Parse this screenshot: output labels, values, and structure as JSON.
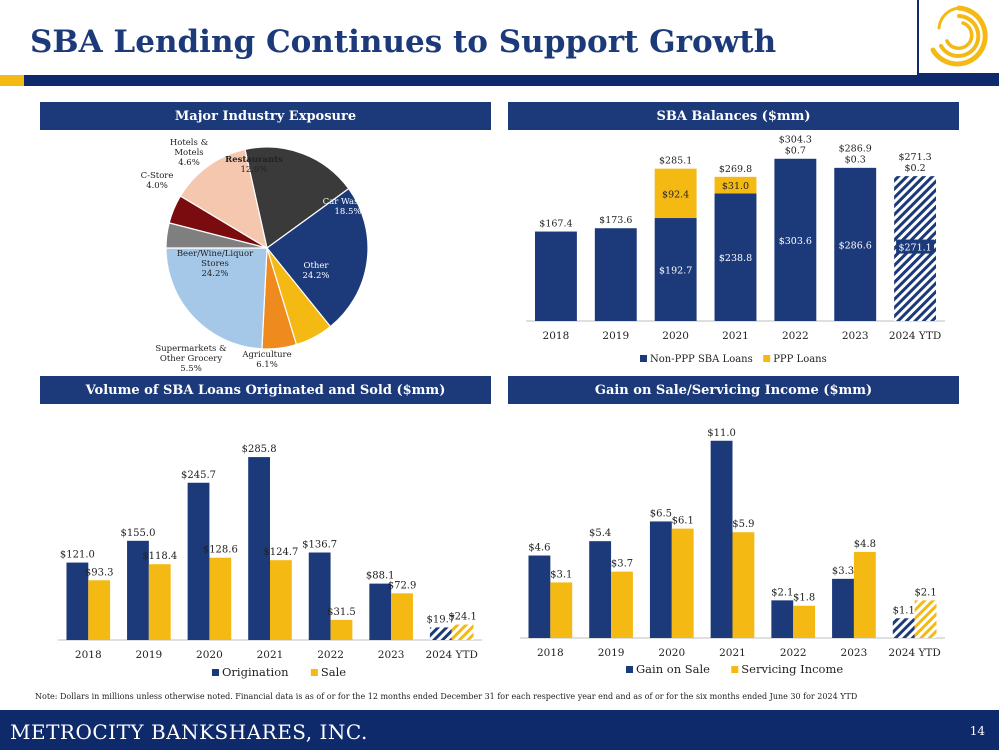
{
  "header": {
    "title": "SBA Lending Continues to Support Growth",
    "logo_icon": "swirl-logo-icon"
  },
  "colors": {
    "navy": "#1c3a7a",
    "dark_navy": "#0f2a6b",
    "gold": "#f5b914"
  },
  "footer": {
    "company": "METROCITY BANKSHARES, INC.",
    "page_number": "14",
    "note": "Note: Dollars in millions unless otherwise noted. Financial data is as of or for the 12 months ended December 31 for each respective year end and as of or for the six months ended June 30 for 2024 YTD"
  },
  "panels": {
    "industry": "Major Industry Exposure",
    "balances": "SBA Balances ($mm)",
    "volume": "Volume of SBA Loans Originated and Sold ($mm)",
    "gain": "Gain on Sale/Servicing Income ($mm)"
  },
  "chart_data": [
    {
      "type": "pie",
      "title": "Major Industry Exposure",
      "slices": [
        {
          "label": "Car Washes",
          "value": 18.5,
          "pct": "18.5%",
          "color": "#3a3a3a"
        },
        {
          "label": "Other",
          "value": 24.2,
          "pct": "24.2%",
          "color": "#1c3a7a"
        },
        {
          "label": "Agriculture",
          "value": 6.1,
          "pct": "6.1%",
          "color": "#f5b914"
        },
        {
          "label": "Supermarkets & Other Grocery",
          "value": 5.5,
          "pct": "5.5%",
          "color": "#ee8a1e"
        },
        {
          "label": "Beer/Wine/Liquor Stores",
          "value": 24.2,
          "pct": "24.2%",
          "color": "#a6c8e8"
        },
        {
          "label": "C-Store",
          "value": 4.0,
          "pct": "4.0%",
          "color": "#7f7f7f"
        },
        {
          "label": "Hotels & Motels",
          "value": 4.6,
          "pct": "4.6%",
          "color": "#7a0c10"
        },
        {
          "label": "Restaurants",
          "value": 12.9,
          "pct": "12.9%",
          "color": "#f4c7ae"
        }
      ]
    },
    {
      "type": "bar",
      "stacked": true,
      "title": "SBA Balances ($mm)",
      "categories": [
        "2018",
        "2019",
        "2020",
        "2021",
        "2022",
        "2023",
        "2024 YTD"
      ],
      "series": [
        {
          "name": "Non-PPP SBA Loans",
          "values": [
            167.4,
            173.6,
            192.7,
            238.8,
            303.6,
            286.6,
            271.1
          ],
          "labels": [
            "",
            "",
            "$192.7",
            "$238.8",
            "$303.6",
            "$286.6",
            "$271.1"
          ],
          "color": "#1c3a7a"
        },
        {
          "name": "PPP Loans",
          "values": [
            0,
            0,
            92.4,
            31.0,
            0.7,
            0.3,
            0.2
          ],
          "labels": [
            "",
            "",
            "$92.4",
            "$31.0",
            "$0.7",
            "$0.3",
            "$0.2"
          ],
          "color": "#f5b914"
        }
      ],
      "totals": [
        "$167.4",
        "$173.6",
        "$285.1",
        "$269.8",
        "$304.3",
        "$286.9",
        "$271.3"
      ],
      "hatched_last": true,
      "ylim": [
        0,
        320
      ],
      "legend": "bottom"
    },
    {
      "type": "bar",
      "title": "Volume of SBA Loans Originated and Sold ($mm)",
      "categories": [
        "2018",
        "2019",
        "2020",
        "2021",
        "2022",
        "2023",
        "2024 YTD"
      ],
      "series": [
        {
          "name": "Origination",
          "values": [
            121.0,
            155.0,
            245.7,
            285.8,
            136.7,
            88.1,
            19.7
          ],
          "labels": [
            "$121.0",
            "$155.0",
            "$245.7",
            "$285.8",
            "$136.7",
            "$88.1",
            "$19.7"
          ],
          "color": "#1c3a7a"
        },
        {
          "name": "Sale",
          "values": [
            93.3,
            118.4,
            128.6,
            124.7,
            31.5,
            72.9,
            24.1
          ],
          "labels": [
            "$93.3",
            "$118.4",
            "$128.6",
            "$124.7",
            "$31.5",
            "$72.9",
            "$24.1"
          ],
          "color": "#f5b914"
        }
      ],
      "hatched_last": true,
      "ylim": [
        0,
        300
      ],
      "legend": "bottom"
    },
    {
      "type": "bar",
      "title": "Gain on Sale/Servicing Income ($mm)",
      "categories": [
        "2018",
        "2019",
        "2020",
        "2021",
        "2022",
        "2023",
        "2024 YTD"
      ],
      "series": [
        {
          "name": "Gain on Sale",
          "values": [
            4.6,
            5.4,
            6.5,
            11.0,
            2.1,
            3.3,
            1.1
          ],
          "labels": [
            "$4.6",
            "$5.4",
            "$6.5",
            "$11.0",
            "$2.1",
            "$3.3",
            "$1.1"
          ],
          "color": "#1c3a7a"
        },
        {
          "name": "Servicing Income",
          "values": [
            3.1,
            3.7,
            6.1,
            5.9,
            1.8,
            4.8,
            2.1
          ],
          "labels": [
            "$3.1",
            "$3.7",
            "$6.1",
            "$5.9",
            "$1.8",
            "$4.8",
            "$2.1"
          ],
          "color": "#f5b914"
        }
      ],
      "hatched_last": true,
      "ylim": [
        0,
        11.6
      ],
      "legend": "bottom"
    }
  ]
}
